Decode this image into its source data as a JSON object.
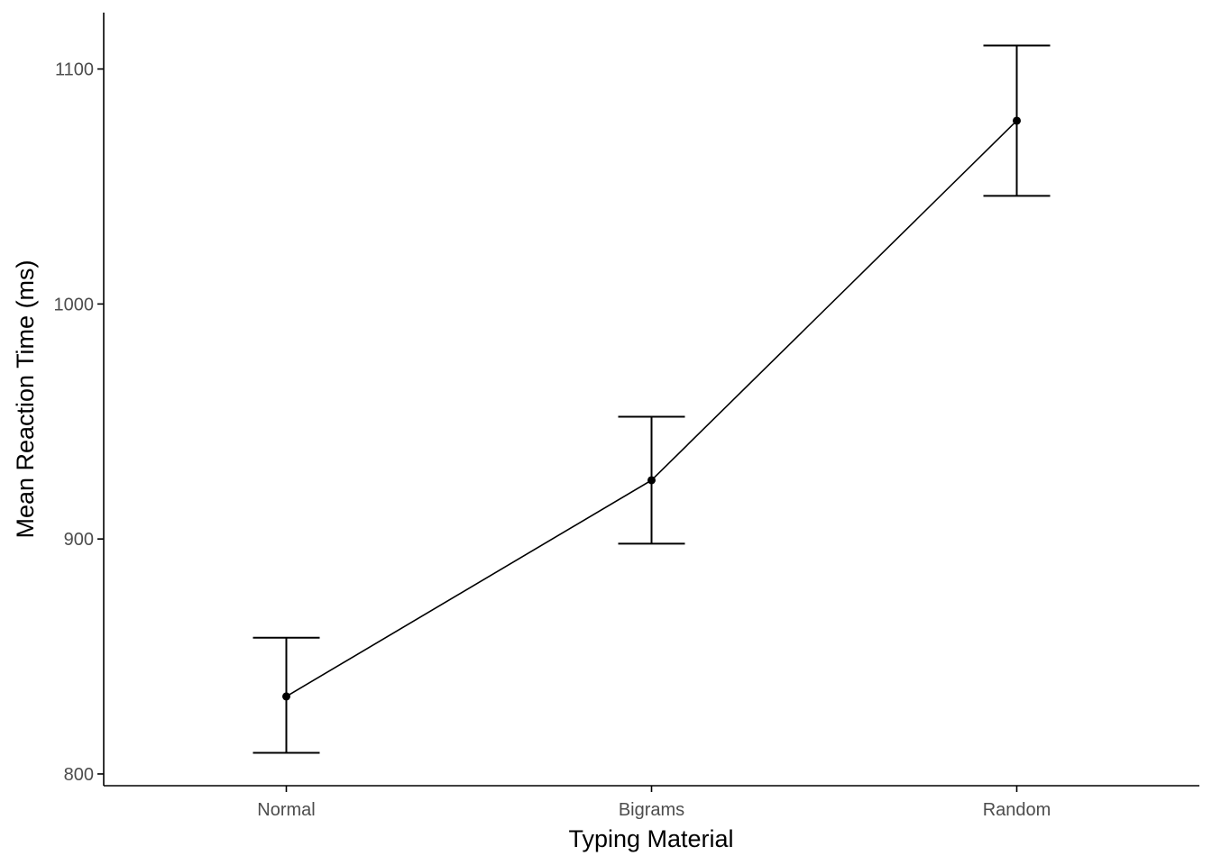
{
  "chart_data": {
    "type": "line",
    "xlabel": "Typing Material",
    "ylabel": "Mean Reaction Time (ms)",
    "categories": [
      "Normal",
      "Bigrams",
      "Random"
    ],
    "series": [
      {
        "values": [
          833,
          925,
          1078
        ],
        "error_lower": [
          809,
          898,
          1046
        ],
        "error_upper": [
          858,
          952,
          1110
        ]
      }
    ],
    "yticks": [
      800,
      900,
      1000,
      1100
    ],
    "ytick_labels": [
      "800",
      "900",
      "1000",
      "1100"
    ],
    "ylim": [
      795,
      1124
    ],
    "grid": false,
    "legend": "none",
    "colors": {
      "line": "#000000",
      "axis": "#000000",
      "tick_label": "#4d4d4d",
      "background": "#ffffff"
    }
  }
}
